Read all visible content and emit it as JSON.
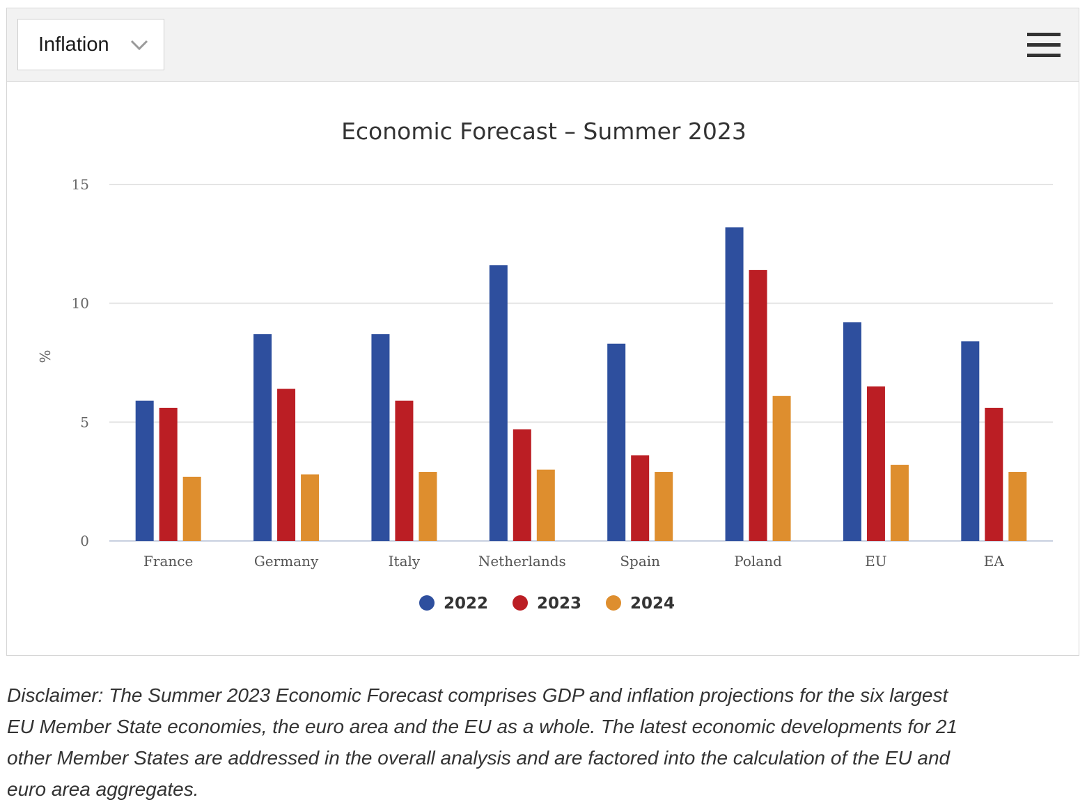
{
  "toolbar": {
    "selector_value": "Inflation",
    "chevron_icon": "chevron-down-icon",
    "menu_icon": "hamburger-menu-icon"
  },
  "chart_data": {
    "type": "bar",
    "title": "Economic Forecast – Summer 2023",
    "xlabel": "",
    "ylabel": "%",
    "ylim": [
      0,
      15
    ],
    "yticks": [
      0,
      5,
      10,
      15
    ],
    "grid": true,
    "legend_position": "bottom-center",
    "categories": [
      "France",
      "Germany",
      "Italy",
      "Netherlands",
      "Spain",
      "Poland",
      "EU",
      "EA"
    ],
    "series": [
      {
        "name": "2022",
        "color": "#2e4f9e",
        "values": [
          5.9,
          8.7,
          8.7,
          11.6,
          8.3,
          13.2,
          9.2,
          8.4
        ]
      },
      {
        "name": "2023",
        "color": "#bb1e24",
        "values": [
          5.6,
          6.4,
          5.9,
          4.7,
          3.6,
          11.4,
          6.5,
          5.6
        ]
      },
      {
        "name": "2024",
        "color": "#de8e2e",
        "values": [
          2.7,
          2.8,
          2.9,
          3.0,
          2.9,
          6.1,
          3.2,
          2.9
        ]
      }
    ]
  },
  "disclaimer": "Disclaimer: The Summer 2023 Economic Forecast comprises GDP and inflation projections for the six largest EU Member State economies, the euro area and the EU as a whole. The latest economic developments for 21 other Member States are addressed in the overall analysis and are factored into the calculation of the EU and euro area aggregates."
}
